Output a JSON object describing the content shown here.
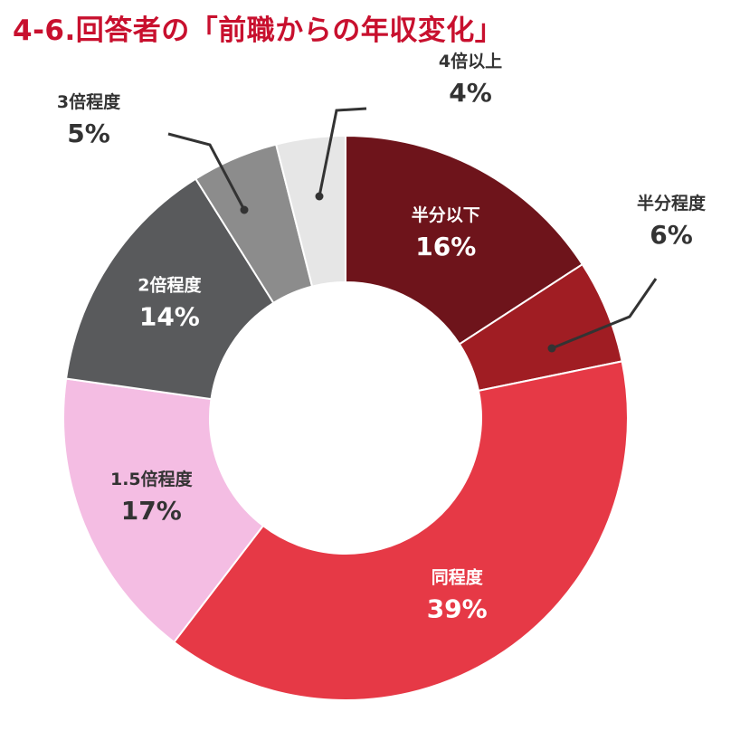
{
  "title": "4-6.回答者の「前職からの年収変化」",
  "chart_data": {
    "type": "pie",
    "donut": true,
    "title": "4-6.回答者の「前職からの年収変化」",
    "slices": [
      {
        "label": "半分以下",
        "value": 16,
        "display": "16%",
        "color": "#6e141b"
      },
      {
        "label": "半分程度",
        "value": 6,
        "display": "6%",
        "color": "#a01d23"
      },
      {
        "label": "同程度",
        "value": 39,
        "display": "39%",
        "color": "#e63946"
      },
      {
        "label": "1.5倍程度",
        "value": 17,
        "display": "17%",
        "color": "#f4bde3"
      },
      {
        "label": "2倍程度",
        "value": 14,
        "display": "14%",
        "color": "#595a5c"
      },
      {
        "label": "3倍程度",
        "value": 5,
        "display": "5%",
        "color": "#8c8c8c"
      },
      {
        "label": "4倍以上",
        "value": 4,
        "display": "4%",
        "color": "#e6e6e6"
      }
    ],
    "legend": "none"
  }
}
